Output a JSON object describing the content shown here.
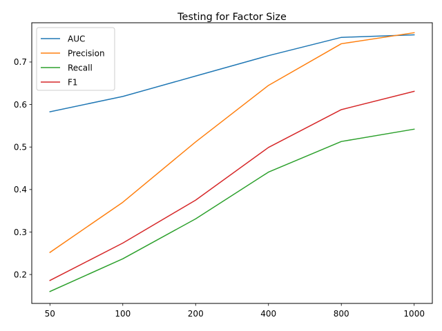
{
  "chart_data": {
    "type": "line",
    "title": "Testing for Factor Size",
    "xlabel": "",
    "ylabel": "",
    "categories": [
      "50",
      "100",
      "200",
      "400",
      "800",
      "1000"
    ],
    "yticks": [
      "0.2",
      "0.3",
      "0.4",
      "0.5",
      "0.6",
      "0.7"
    ],
    "ylim": [
      0.132,
      0.7924
    ],
    "grid": false,
    "legend_position": "upper left",
    "series": [
      {
        "name": "AUC",
        "color": "#1f77b4",
        "values": [
          0.583,
          0.619,
          0.667,
          0.715,
          0.758,
          0.764
        ]
      },
      {
        "name": "Precision",
        "color": "#ff7f0e",
        "values": [
          0.252,
          0.37,
          0.512,
          0.645,
          0.743,
          0.769
        ]
      },
      {
        "name": "Recall",
        "color": "#2ca02c",
        "values": [
          0.16,
          0.237,
          0.331,
          0.441,
          0.513,
          0.542
        ]
      },
      {
        "name": "F1",
        "color": "#d62728",
        "values": [
          0.186,
          0.274,
          0.375,
          0.499,
          0.588,
          0.631
        ]
      }
    ]
  }
}
